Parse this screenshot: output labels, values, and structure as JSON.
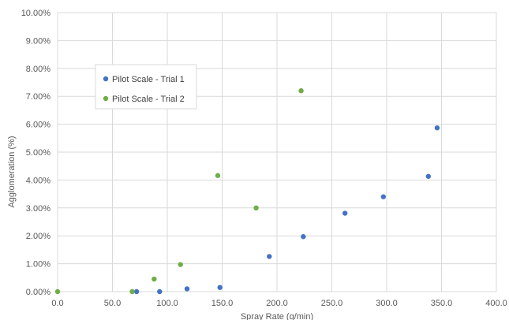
{
  "chart_data": {
    "type": "scatter",
    "title": "",
    "xlabel": "Spray Rate (g/min)",
    "ylabel": "Agglomeration (%)",
    "xlim": [
      0,
      400
    ],
    "ylim": [
      0,
      10
    ],
    "x_ticks": [
      0,
      50,
      100,
      150,
      200,
      250,
      300,
      350,
      400
    ],
    "x_tick_labels": [
      "0.0",
      "50.0",
      "100.0",
      "150.0",
      "200.0",
      "250.0",
      "300.0",
      "350.0",
      "400.0"
    ],
    "y_ticks": [
      0,
      1,
      2,
      3,
      4,
      5,
      6,
      7,
      8,
      9,
      10
    ],
    "y_tick_labels": [
      "0.00%",
      "1.00%",
      "2.00%",
      "3.00%",
      "4.00%",
      "5.00%",
      "6.00%",
      "7.00%",
      "8.00%",
      "9.00%",
      "10.00%"
    ],
    "grid": true,
    "legend": {
      "position": "upper-left"
    },
    "series": [
      {
        "name": "Pilot Scale - Trial 1",
        "color": "#4472C4",
        "points": [
          [
            72,
            0.0
          ],
          [
            93,
            0.0
          ],
          [
            118,
            0.1
          ],
          [
            148,
            0.15
          ],
          [
            193,
            1.26
          ],
          [
            224,
            1.97
          ],
          [
            262,
            2.81
          ],
          [
            297,
            3.4
          ],
          [
            338,
            4.13
          ],
          [
            346,
            5.87
          ]
        ]
      },
      {
        "name": "Pilot Scale - Trial 2",
        "color": "#70AD47",
        "points": [
          [
            0,
            0.0
          ],
          [
            68,
            0.0
          ],
          [
            88,
            0.45
          ],
          [
            112,
            0.97
          ],
          [
            146,
            4.16
          ],
          [
            181,
            3.0
          ],
          [
            222,
            7.2
          ]
        ]
      }
    ]
  }
}
